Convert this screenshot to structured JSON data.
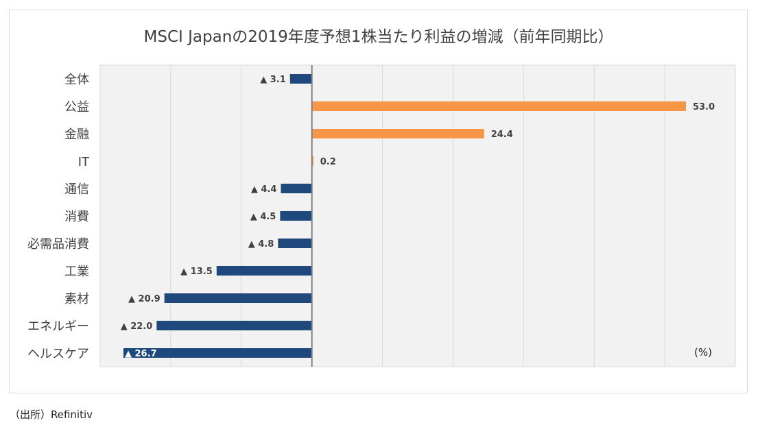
{
  "chart_data": {
    "type": "bar",
    "orientation": "horizontal",
    "title": "MSCI Japanの2019年度予想1株当たり利益の増減（前年同期比）",
    "unit_label": "(%)",
    "categories": [
      "全体",
      "公益",
      "金融",
      "IT",
      "通信",
      "消費",
      "必需品消費",
      "工業",
      "素材",
      "エネルギー",
      "ヘルスケア"
    ],
    "values": [
      -3.1,
      53.0,
      24.4,
      0.2,
      -4.4,
      -4.5,
      -4.8,
      -13.5,
      -20.9,
      -22.0,
      -26.7
    ],
    "data_labels": [
      "▲ 3.1",
      "53.0",
      "24.4",
      "0.2",
      "▲ 4.4",
      "▲ 4.5",
      "▲ 4.8",
      "▲ 13.5",
      "▲ 20.9",
      "▲ 22.0",
      "▲ 26.7"
    ],
    "xlim": [
      -30,
      60
    ],
    "gridlines": "vertical",
    "colors": {
      "positive": "#f79646",
      "negative": "#1f497d",
      "zero_line": "#7f7f7f",
      "grid": "#d9d9d9",
      "plot_bg": "#f2f2f2"
    }
  },
  "source": "（出所）Refinitiv"
}
